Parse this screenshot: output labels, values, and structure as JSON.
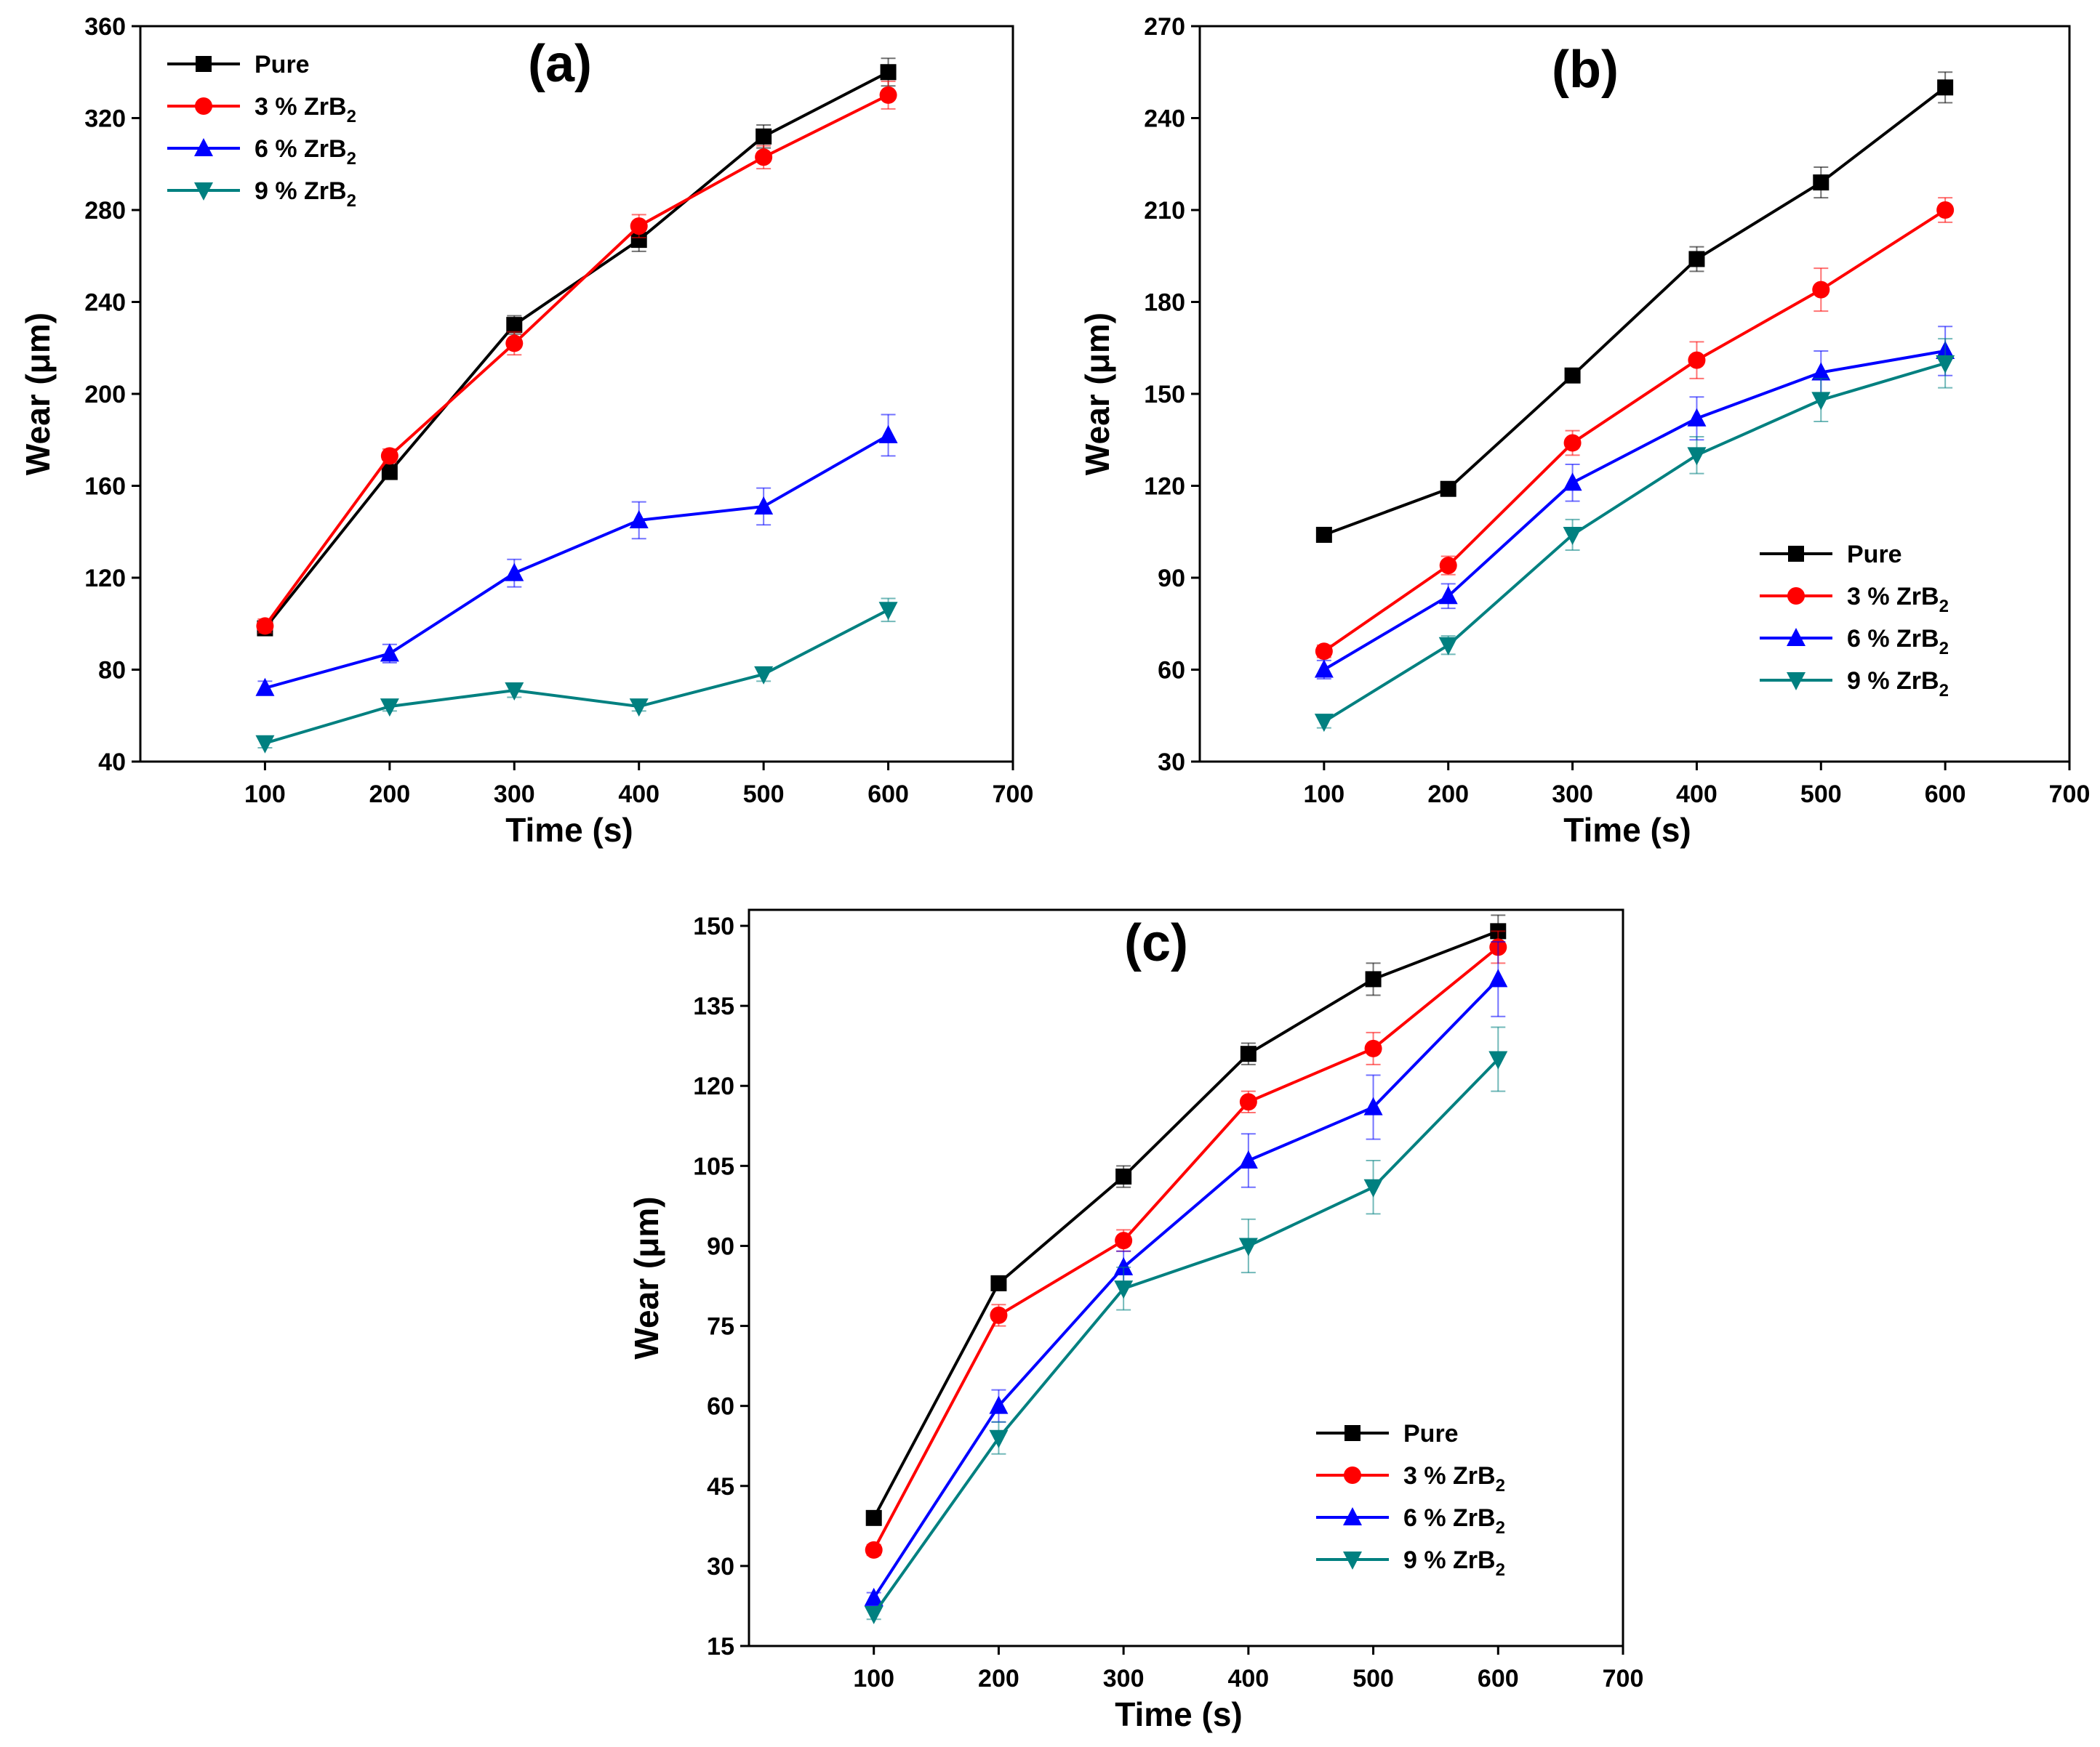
{
  "chart_data": [
    {
      "type": "line",
      "panel_label": "(a)",
      "xlabel": "Time (s)",
      "ylabel": "Wear (μm)",
      "xlim": [
        0,
        700
      ],
      "ylim": [
        40,
        360
      ],
      "xticks": [
        100,
        200,
        300,
        400,
        500,
        600,
        700
      ],
      "yticks": [
        40,
        80,
        120,
        160,
        200,
        240,
        280,
        320,
        360
      ],
      "legend_position": "top-left",
      "x": [
        100,
        200,
        300,
        400,
        500,
        600
      ],
      "series": [
        {
          "name": "Pure",
          "suffix": "",
          "color": "#000000",
          "marker": "square",
          "values": [
            98,
            166,
            230,
            267,
            312,
            340
          ],
          "errors": [
            3,
            3,
            4,
            5,
            5,
            6
          ]
        },
        {
          "name": "3 % ZrB",
          "suffix": "2",
          "color": "#ff0000",
          "marker": "circle",
          "values": [
            99,
            173,
            222,
            273,
            303,
            330
          ],
          "errors": [
            3,
            3,
            5,
            5,
            5,
            6
          ]
        },
        {
          "name": "6 % ZrB",
          "suffix": "2",
          "color": "#0000ff",
          "marker": "triangle-up",
          "values": [
            72,
            87,
            122,
            145,
            151,
            182
          ],
          "errors": [
            3,
            4,
            6,
            8,
            8,
            9
          ]
        },
        {
          "name": "9 % ZrB",
          "suffix": "2",
          "color": "#008080",
          "marker": "triangle-down",
          "values": [
            48,
            64,
            71,
            64,
            78,
            106
          ],
          "errors": [
            2,
            2,
            3,
            2,
            3,
            5
          ]
        }
      ]
    },
    {
      "type": "line",
      "panel_label": "(b)",
      "xlabel": "Time (s)",
      "ylabel": "Wear (μm)",
      "xlim": [
        0,
        700
      ],
      "ylim": [
        30,
        270
      ],
      "xticks": [
        100,
        200,
        300,
        400,
        500,
        600,
        700
      ],
      "yticks": [
        30,
        60,
        90,
        120,
        150,
        180,
        210,
        240,
        270
      ],
      "legend_position": "lower-right",
      "x": [
        100,
        200,
        300,
        400,
        500,
        600
      ],
      "series": [
        {
          "name": "Pure",
          "suffix": "",
          "color": "#000000",
          "marker": "square",
          "values": [
            104,
            119,
            156,
            194,
            219,
            250
          ],
          "errors": [
            2,
            2,
            2,
            4,
            5,
            5
          ]
        },
        {
          "name": "3 % ZrB",
          "suffix": "2",
          "color": "#ff0000",
          "marker": "circle",
          "values": [
            66,
            94,
            134,
            161,
            184,
            210
          ],
          "errors": [
            2,
            3,
            4,
            6,
            7,
            4
          ]
        },
        {
          "name": "6 % ZrB",
          "suffix": "2",
          "color": "#0000ff",
          "marker": "triangle-up",
          "values": [
            60,
            84,
            121,
            142,
            157,
            164
          ],
          "errors": [
            3,
            4,
            6,
            7,
            7,
            8
          ]
        },
        {
          "name": "9 % ZrB",
          "suffix": "2",
          "color": "#008080",
          "marker": "triangle-down",
          "values": [
            43,
            68,
            104,
            130,
            148,
            160
          ],
          "errors": [
            2,
            3,
            5,
            6,
            7,
            8
          ]
        }
      ]
    },
    {
      "type": "line",
      "panel_label": "(c)",
      "xlabel": "Time (s)",
      "ylabel": "Wear (μm)",
      "xlim": [
        0,
        700
      ],
      "ylim": [
        15,
        153
      ],
      "xticks": [
        100,
        200,
        300,
        400,
        500,
        600,
        700
      ],
      "yticks": [
        15,
        30,
        45,
        60,
        75,
        90,
        105,
        120,
        135,
        150
      ],
      "legend_position": "lower-right",
      "x": [
        100,
        200,
        300,
        400,
        500,
        600
      ],
      "series": [
        {
          "name": "Pure",
          "suffix": "",
          "color": "#000000",
          "marker": "square",
          "values": [
            39,
            83,
            103,
            126,
            140,
            149
          ],
          "errors": [
            1,
            1,
            2,
            2,
            3,
            3
          ]
        },
        {
          "name": "3 % ZrB",
          "suffix": "2",
          "color": "#ff0000",
          "marker": "circle",
          "values": [
            33,
            77,
            91,
            117,
            127,
            146
          ],
          "errors": [
            1,
            2,
            2,
            2,
            3,
            3
          ]
        },
        {
          "name": "6 % ZrB",
          "suffix": "2",
          "color": "#0000ff",
          "marker": "triangle-up",
          "values": [
            24,
            60,
            86,
            106,
            116,
            140
          ],
          "errors": [
            1,
            3,
            3,
            5,
            6,
            7
          ]
        },
        {
          "name": "9 % ZrB",
          "suffix": "2",
          "color": "#008080",
          "marker": "triangle-down",
          "values": [
            21,
            54,
            82,
            90,
            101,
            125
          ],
          "errors": [
            1,
            3,
            4,
            5,
            5,
            6
          ]
        }
      ]
    }
  ]
}
